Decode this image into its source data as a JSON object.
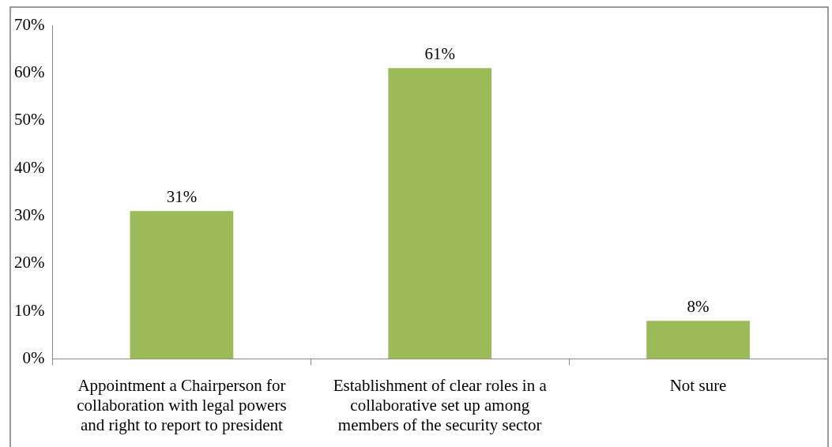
{
  "chart_data": {
    "type": "bar",
    "categories": [
      "Appointment a Chairperson for collaboration with legal powers and right to report to president",
      "Establishment of clear roles in a collaborative set up among members of the security sector",
      "Not sure"
    ],
    "values": [
      31,
      61,
      8
    ],
    "value_labels": [
      "31%",
      "61%",
      "8%"
    ],
    "color": "#9bbb59",
    "ylim": [
      0,
      70
    ],
    "yticks": [
      {
        "value": 0,
        "label": "0%"
      },
      {
        "value": 10,
        "label": "10%"
      },
      {
        "value": 20,
        "label": "20%"
      },
      {
        "value": 30,
        "label": "30%"
      },
      {
        "value": 40,
        "label": "40%"
      },
      {
        "value": 50,
        "label": "50%"
      },
      {
        "value": 60,
        "label": "60%"
      },
      {
        "value": 70,
        "label": "70%"
      }
    ],
    "grid": false,
    "legend": false
  }
}
